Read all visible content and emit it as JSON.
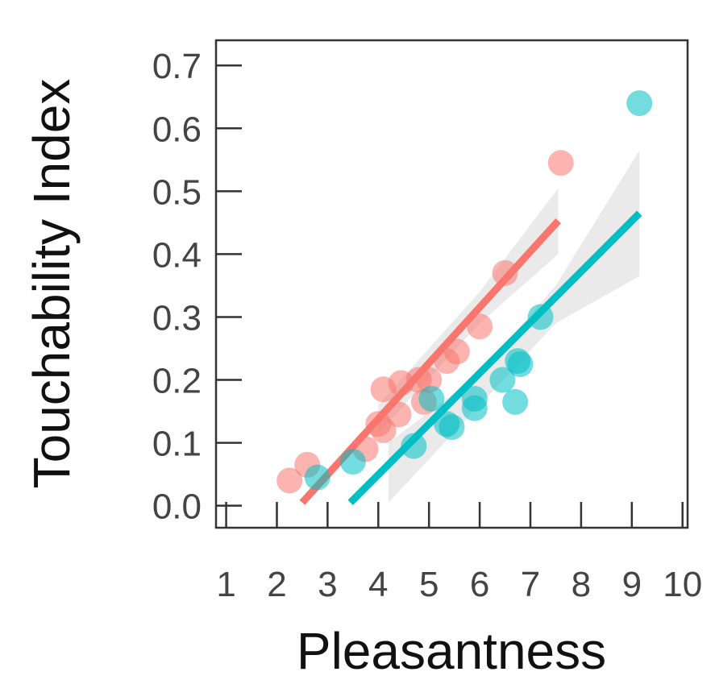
{
  "chart_data": {
    "type": "scatter",
    "title": "",
    "xlabel": "Pleasantness",
    "ylabel": "Touchability Index",
    "xlim": [
      0.8,
      10.1
    ],
    "ylim": [
      -0.035,
      0.74
    ],
    "xticks": [
      1,
      2,
      3,
      4,
      5,
      6,
      7,
      8,
      9,
      10
    ],
    "yticks": [
      0.0,
      0.1,
      0.2,
      0.3,
      0.4,
      0.5,
      0.6,
      0.7
    ],
    "ytick_labels": [
      "0.0",
      "0.1",
      "0.2",
      "0.3",
      "0.4",
      "0.5",
      "0.6",
      "0.7"
    ],
    "grid": false,
    "legend": "none",
    "series": [
      {
        "color": "#F8766D",
        "points": [
          {
            "x": 2.25,
            "y": 0.04
          },
          {
            "x": 2.6,
            "y": 0.065
          },
          {
            "x": 3.75,
            "y": 0.09
          },
          {
            "x": 4.0,
            "y": 0.13
          },
          {
            "x": 4.1,
            "y": 0.12
          },
          {
            "x": 4.1,
            "y": 0.185
          },
          {
            "x": 4.4,
            "y": 0.145
          },
          {
            "x": 4.45,
            "y": 0.195
          },
          {
            "x": 4.8,
            "y": 0.2
          },
          {
            "x": 4.9,
            "y": 0.165
          },
          {
            "x": 5.0,
            "y": 0.2
          },
          {
            "x": 5.35,
            "y": 0.23
          },
          {
            "x": 5.55,
            "y": 0.245
          },
          {
            "x": 6.0,
            "y": 0.285
          },
          {
            "x": 6.5,
            "y": 0.37
          },
          {
            "x": 7.6,
            "y": 0.545
          }
        ],
        "fit": {
          "x0": 2.5,
          "y0": 0.005,
          "x1": 7.55,
          "y1": 0.453
        },
        "ci_upper": [
          {
            "x": 4.0,
            "y": 0.16
          },
          {
            "x": 6.0,
            "y": 0.34
          },
          {
            "x": 7.55,
            "y": 0.505
          }
        ],
        "ci_lower": [
          {
            "x": 4.0,
            "y": 0.115
          },
          {
            "x": 6.0,
            "y": 0.29
          },
          {
            "x": 7.55,
            "y": 0.4
          }
        ]
      },
      {
        "color": "#00BFC4",
        "points": [
          {
            "x": 2.8,
            "y": 0.045
          },
          {
            "x": 3.5,
            "y": 0.07
          },
          {
            "x": 4.7,
            "y": 0.095
          },
          {
            "x": 5.05,
            "y": 0.17
          },
          {
            "x": 5.35,
            "y": 0.13
          },
          {
            "x": 5.45,
            "y": 0.125
          },
          {
            "x": 5.9,
            "y": 0.17
          },
          {
            "x": 5.9,
            "y": 0.155
          },
          {
            "x": 6.45,
            "y": 0.2
          },
          {
            "x": 6.7,
            "y": 0.165
          },
          {
            "x": 6.75,
            "y": 0.23
          },
          {
            "x": 6.8,
            "y": 0.225
          },
          {
            "x": 7.2,
            "y": 0.3
          },
          {
            "x": 9.15,
            "y": 0.64
          }
        ],
        "fit": {
          "x0": 3.45,
          "y0": 0.005,
          "x1": 9.15,
          "y1": 0.465
        },
        "ci_upper": [
          {
            "x": 4.2,
            "y": 0.1
          },
          {
            "x": 6.0,
            "y": 0.21
          },
          {
            "x": 7.5,
            "y": 0.35
          },
          {
            "x": 9.15,
            "y": 0.565
          }
        ],
        "ci_lower": [
          {
            "x": 4.2,
            "y": 0.005
          },
          {
            "x": 6.0,
            "y": 0.16
          },
          {
            "x": 7.5,
            "y": 0.29
          },
          {
            "x": 9.15,
            "y": 0.365
          }
        ]
      }
    ]
  }
}
